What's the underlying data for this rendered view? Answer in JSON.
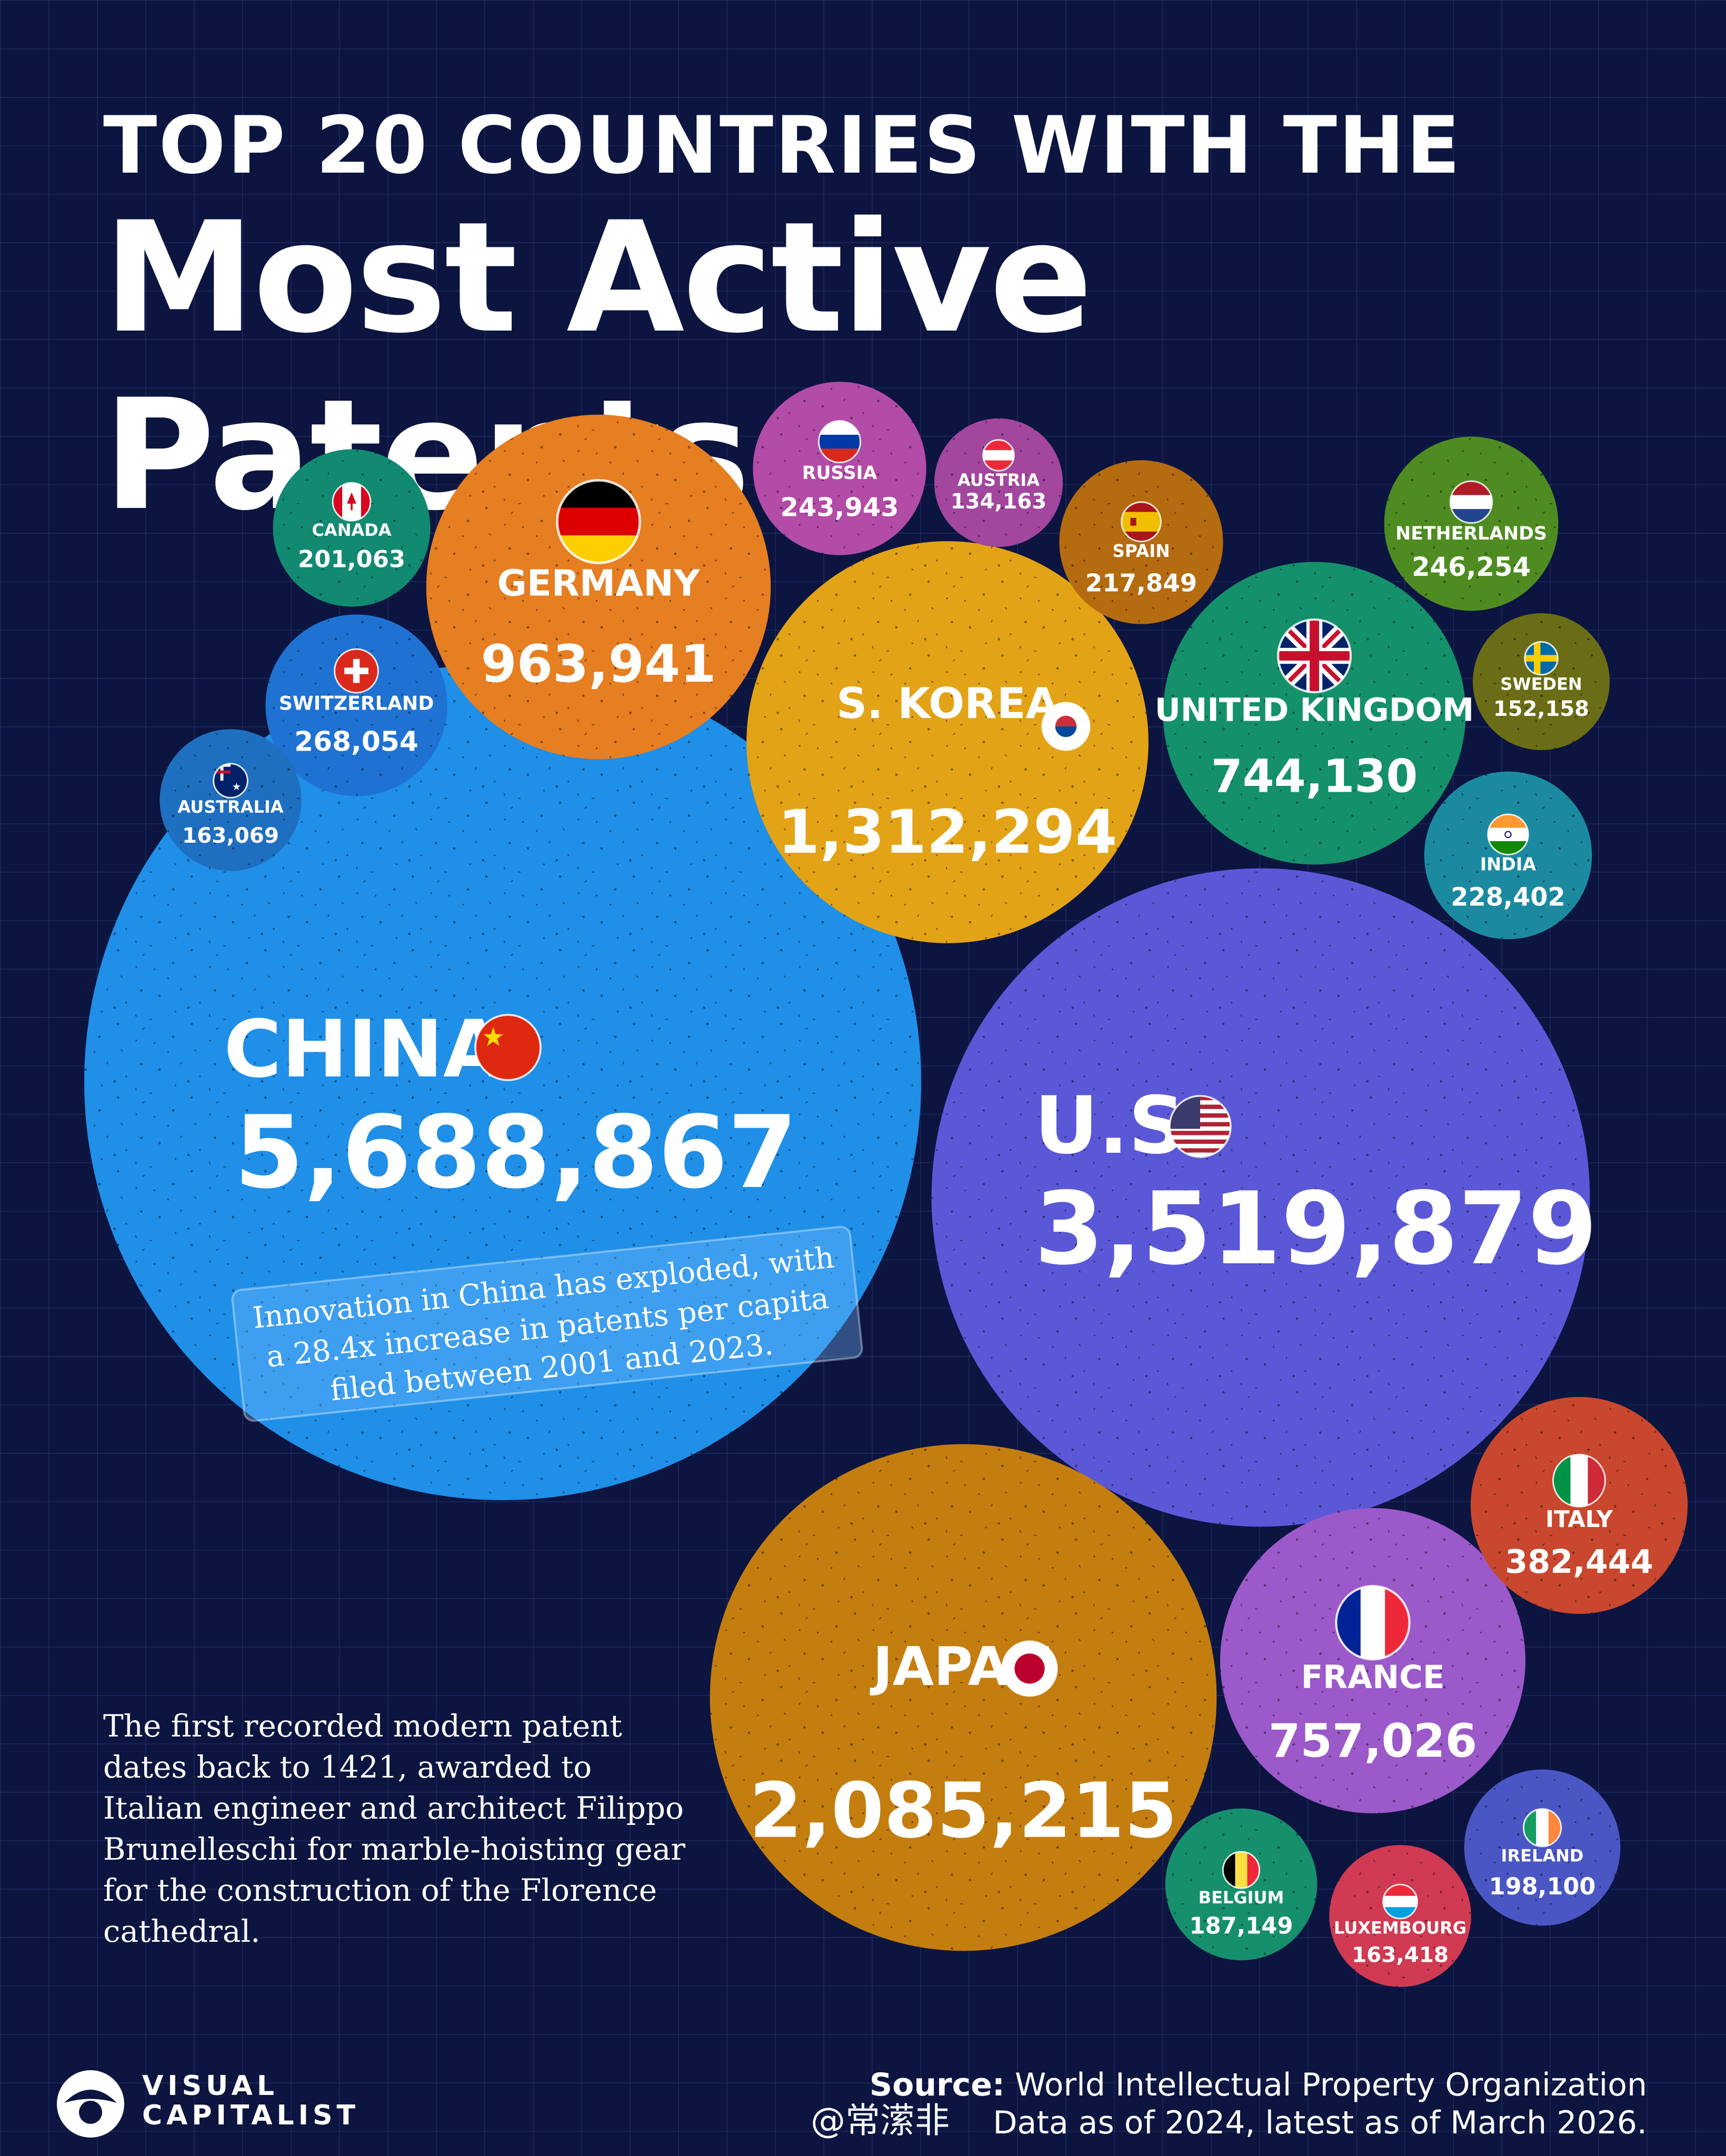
{
  "title": {
    "line1": "TOP 20 COUNTRIES WITH THE",
    "line2": "Most Active Patents"
  },
  "chart_data": {
    "type": "bubble",
    "title": "Top 20 Countries with the Most Active Patents",
    "unit": "active patents",
    "countries": [
      {
        "name": "CHINA",
        "value": 5688867,
        "label": "5,688,867",
        "flag": "china-flag",
        "color": "#1f8fe8"
      },
      {
        "name": "U.S.",
        "value": 3519879,
        "label": "3,519,879",
        "flag": "us-flag",
        "color": "#5b58d8"
      },
      {
        "name": "JAPAN",
        "value": 2085215,
        "label": "2,085,215",
        "flag": "japan-flag",
        "color": "#c47d0f"
      },
      {
        "name": "S. KOREA",
        "value": 1312294,
        "label": "1,312,294",
        "flag": "south-korea-flag",
        "color": "#e3a316"
      },
      {
        "name": "GERMANY",
        "value": 963941,
        "label": "963,941",
        "flag": "germany-flag",
        "color": "#e67e22"
      },
      {
        "name": "FRANCE",
        "value": 757026,
        "label": "757,026",
        "flag": "france-flag",
        "color": "#9b59c9"
      },
      {
        "name": "UNITED KINGDOM",
        "value": 744130,
        "label": "744,130",
        "flag": "uk-flag",
        "color": "#14906a"
      },
      {
        "name": "ITALY",
        "value": 382444,
        "label": "382,444",
        "flag": "italy-flag",
        "color": "#c8472e"
      },
      {
        "name": "SWITZERLAND",
        "value": 268054,
        "label": "268,054",
        "flag": "switzerland-flag",
        "color": "#1f72d2"
      },
      {
        "name": "NETHERLANDS",
        "value": 246254,
        "label": "246,254",
        "flag": "netherlands-flag",
        "color": "#4e8c22"
      },
      {
        "name": "RUSSIA",
        "value": 243943,
        "label": "243,943",
        "flag": "russia-flag",
        "color": "#b24ca6"
      },
      {
        "name": "INDIA",
        "value": 228402,
        "label": "228,402",
        "flag": "india-flag",
        "color": "#1b8aa0"
      },
      {
        "name": "SPAIN",
        "value": 217849,
        "label": "217,849",
        "flag": "spain-flag",
        "color": "#b56b10"
      },
      {
        "name": "CANADA",
        "value": 201063,
        "label": "201,063",
        "flag": "canada-flag",
        "color": "#128a72"
      },
      {
        "name": "IRELAND",
        "value": 198100,
        "label": "198,100",
        "flag": "ireland-flag",
        "color": "#4a56c4"
      },
      {
        "name": "BELGIUM",
        "value": 187149,
        "label": "187,149",
        "flag": "belgium-flag",
        "color": "#16906c"
      },
      {
        "name": "LUXEMBOURG",
        "value": 163418,
        "label": "163,418",
        "flag": "luxembourg-flag",
        "color": "#d03a52"
      },
      {
        "name": "AUSTRALIA",
        "value": 163069,
        "label": "163,069",
        "flag": "australia-flag",
        "color": "#1f6fc0"
      },
      {
        "name": "SWEDEN",
        "value": 152158,
        "label": "152,158",
        "flag": "sweden-flag",
        "color": "#6b6d16"
      },
      {
        "name": "AUSTRIA",
        "value": 134163,
        "label": "134,163",
        "flag": "austria-flag",
        "color": "#a2469e"
      }
    ],
    "annotation": [
      "Innovation in China has exploded, with",
      "a 28.4x increase in patents per capita",
      "filed between 2001 and 2023."
    ]
  },
  "note": "The first recorded modern patent dates back to 1421, awarded to Italian engineer and architect Filippo Brunelleschi for marble-hoisting gear for the construction of the Florence cathedral.",
  "brand": {
    "line1": "VISUAL",
    "line2": "CAPITALIST"
  },
  "handle": "@常潆非",
  "source": {
    "label": "Source:",
    "text": "World Intellectual Property Organization",
    "line2": "Data as of 2024, latest as of March 2026."
  }
}
